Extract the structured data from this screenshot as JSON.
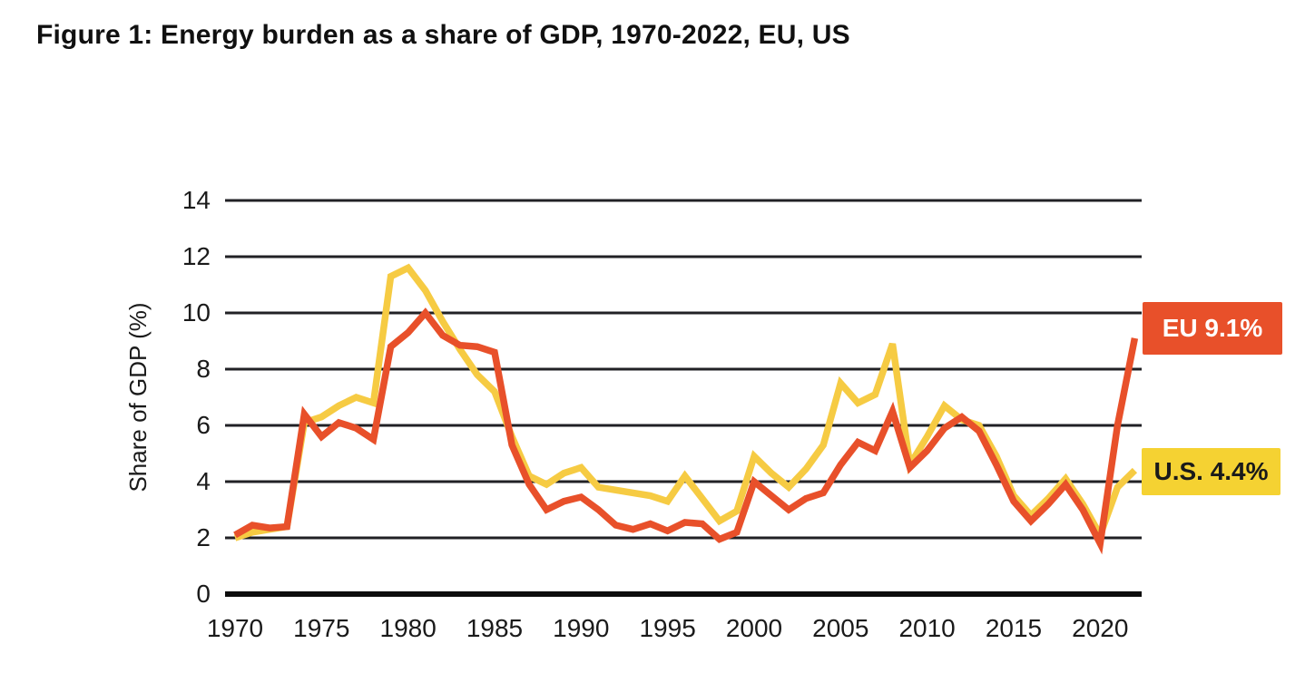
{
  "page": {
    "title": "Figure 1: Energy burden as a share of GDP, 1970-2022, EU, US"
  },
  "chart_data": {
    "type": "line",
    "title": "Figure 1: Energy burden as a share of GDP, 1970-2022, EU, US",
    "xlabel": "",
    "ylabel": "Share of GDP (%)",
    "ylim": [
      0,
      14
    ],
    "xlim": [
      1970,
      2022
    ],
    "grid": "horizontal",
    "legend": "end-labels-right",
    "y_ticks": [
      0,
      2,
      4,
      6,
      8,
      10,
      12,
      14
    ],
    "x_ticks": [
      1970,
      1975,
      1980,
      1985,
      1990,
      1995,
      2000,
      2005,
      2010,
      2015,
      2020
    ],
    "x": [
      1970,
      1971,
      1972,
      1973,
      1974,
      1975,
      1976,
      1977,
      1978,
      1979,
      1980,
      1981,
      1982,
      1983,
      1984,
      1985,
      1986,
      1987,
      1988,
      1989,
      1990,
      1991,
      1992,
      1993,
      1994,
      1995,
      1996,
      1997,
      1998,
      1999,
      2000,
      2001,
      2002,
      2003,
      2004,
      2005,
      2006,
      2007,
      2008,
      2009,
      2010,
      2011,
      2012,
      2013,
      2014,
      2015,
      2016,
      2017,
      2018,
      2019,
      2020,
      2021,
      2022
    ],
    "series": [
      {
        "name": "EU",
        "color": "#E8502A",
        "end_label": "EU 9.1%",
        "end_value": 9.1,
        "end_label_bg": "#E8502A",
        "end_label_text_color": "#FFFFFF",
        "values": [
          2.1,
          2.45,
          2.35,
          2.4,
          6.4,
          5.6,
          6.1,
          5.9,
          5.5,
          8.8,
          9.3,
          10.0,
          9.2,
          8.85,
          8.8,
          8.6,
          5.3,
          3.9,
          3.0,
          3.3,
          3.45,
          3.0,
          2.45,
          2.3,
          2.5,
          2.25,
          2.55,
          2.5,
          1.95,
          2.2,
          4.0,
          3.5,
          3.0,
          3.4,
          3.6,
          4.6,
          5.4,
          5.1,
          6.5,
          4.5,
          5.1,
          5.9,
          6.3,
          5.8,
          4.6,
          3.3,
          2.6,
          3.2,
          3.9,
          3.0,
          1.8,
          6.0,
          9.1
        ]
      },
      {
        "name": "U.S.",
        "color": "#F6CB43",
        "end_label": "U.S. 4.4%",
        "end_value": 4.4,
        "end_label_bg": "#F5D232",
        "end_label_text_color": "#1A1A1A",
        "values": [
          2.0,
          2.2,
          2.3,
          2.4,
          6.1,
          6.3,
          6.7,
          7.0,
          6.8,
          11.3,
          11.6,
          10.8,
          9.7,
          8.7,
          7.8,
          7.2,
          5.6,
          4.2,
          3.9,
          4.3,
          4.5,
          3.8,
          3.7,
          3.6,
          3.5,
          3.3,
          4.2,
          3.4,
          2.6,
          2.95,
          4.9,
          4.3,
          3.8,
          4.45,
          5.3,
          7.5,
          6.8,
          7.1,
          8.9,
          4.6,
          5.6,
          6.7,
          6.2,
          6.0,
          4.9,
          3.5,
          2.8,
          3.4,
          4.1,
          3.2,
          2.1,
          3.8,
          4.4
        ]
      }
    ],
    "axis_colors": {
      "gridline": "#212125",
      "baseline": "#0d0d0d",
      "tick_text": "#1a1a1a"
    }
  }
}
